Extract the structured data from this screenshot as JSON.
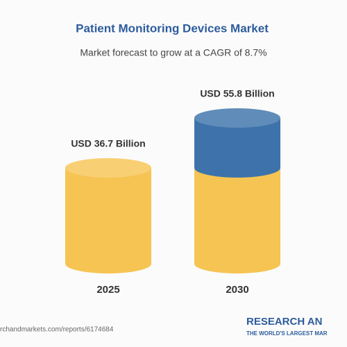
{
  "chart_data": {
    "type": "cylinder-bar",
    "title": "Patient Monitoring Devices Market",
    "subtitle": "Market forecast to grow at a CAGR of 8.7%",
    "categories": [
      "2025",
      "2030"
    ],
    "values": [
      36.7,
      55.8
    ],
    "value_labels": [
      "USD 36.7 Billion",
      "USD 55.8 Billion"
    ],
    "colors": [
      "#f6c453",
      "#3d73aa"
    ],
    "source": "rchandmarkets.com/reports/6174684",
    "logo": "RESEARCH AN",
    "logo_tagline": "THE WORLD'S LARGEST MAR"
  }
}
